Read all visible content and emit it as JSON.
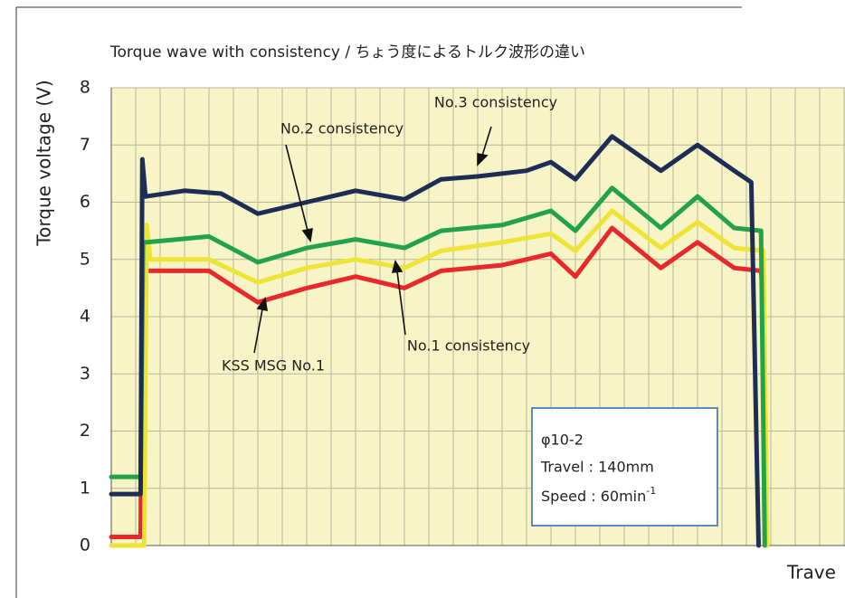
{
  "chart_data": {
    "type": "line",
    "title": "Torque wave with consistency / ちょう度によるトルク波形の違い",
    "y_label": "Torque voltage (V)",
    "x_label": "Trave",
    "xlim": [
      0,
      30
    ],
    "xticks": [
      0,
      1,
      2,
      3,
      4,
      5,
      6,
      7,
      8,
      9,
      10,
      11,
      12,
      13,
      14,
      15,
      16,
      17,
      18,
      19,
      20,
      21,
      22,
      23,
      24,
      25,
      26,
      27,
      28,
      29,
      30
    ],
    "ylim": [
      0,
      8
    ],
    "yticks": [
      0,
      1,
      2,
      3,
      4,
      5,
      6,
      7,
      8
    ],
    "grid": true,
    "plot_background": "#f7f4c6",
    "series": [
      {
        "name": "KSS MSG No.1",
        "color": "#e8282a",
        "x": [
          0,
          1.2,
          1.3,
          1.5,
          4,
          6,
          8,
          10,
          12,
          13.5,
          16,
          18,
          19,
          20.5,
          22.5,
          24,
          25.5,
          26.6,
          26.7
        ],
        "values": [
          0.15,
          0.15,
          4.8,
          4.8,
          4.8,
          4.25,
          4.5,
          4.7,
          4.5,
          4.8,
          4.9,
          5.1,
          4.7,
          5.55,
          4.85,
          5.3,
          4.85,
          4.8,
          4.3
        ]
      },
      {
        "name": "No.1 consistency",
        "color": "#eee436",
        "x": [
          0,
          1.35,
          1.45,
          1.6,
          4,
          6,
          8,
          10,
          12,
          13.5,
          16,
          18,
          19,
          20.5,
          22.5,
          24,
          25.5,
          26.7,
          26.85
        ],
        "values": [
          0,
          0,
          5.6,
          5.0,
          5.0,
          4.6,
          4.85,
          5.0,
          4.85,
          5.15,
          5.3,
          5.45,
          5.15,
          5.85,
          5.2,
          5.65,
          5.2,
          5.15,
          0
        ]
      },
      {
        "name": "No.2 consistency",
        "color": "#22a24a",
        "x": [
          0,
          1.2,
          1.3,
          1.45,
          4,
          6,
          8,
          10,
          12,
          13.5,
          16,
          18,
          19,
          20.5,
          22.5,
          24,
          25.5,
          26.6,
          26.75
        ],
        "values": [
          1.2,
          1.2,
          5.3,
          5.3,
          5.4,
          4.95,
          5.2,
          5.35,
          5.2,
          5.5,
          5.6,
          5.85,
          5.5,
          6.25,
          5.55,
          6.1,
          5.55,
          5.5,
          0
        ]
      },
      {
        "name": "No.3 consistency",
        "color": "#1d2d55",
        "x": [
          0,
          1.2,
          1.27,
          1.4,
          3,
          4.5,
          6,
          8,
          10,
          12,
          13.5,
          15,
          17,
          18,
          19,
          20.5,
          22.5,
          24,
          25.5,
          26.2,
          26.5
        ],
        "values": [
          0.9,
          0.9,
          6.75,
          6.1,
          6.2,
          6.15,
          5.8,
          6.0,
          6.2,
          6.05,
          6.4,
          6.45,
          6.55,
          6.7,
          6.4,
          7.15,
          6.55,
          7.0,
          6.55,
          6.35,
          0
        ]
      }
    ],
    "info_box": [
      "φ10-2",
      "Travel : 140mm",
      "Speed : 60min"
    ],
    "info_box_superscript": "-1"
  }
}
